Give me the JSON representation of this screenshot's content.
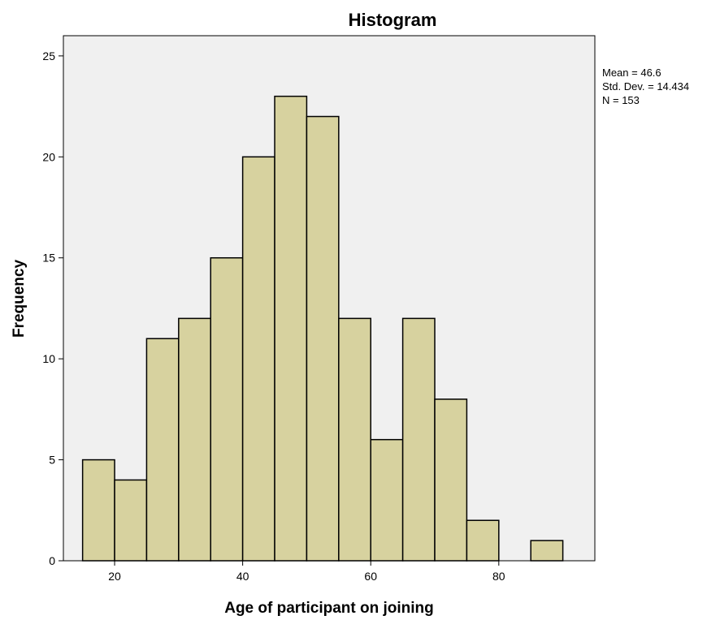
{
  "chart_data": {
    "type": "bar",
    "title": "Histogram",
    "xlabel": "Age of participant on joining",
    "ylabel": "Frequency",
    "xlim": [
      12,
      95
    ],
    "ylim": [
      0,
      26
    ],
    "x_ticks": [
      20,
      40,
      60,
      80
    ],
    "y_ticks": [
      0,
      5,
      10,
      15,
      20,
      25
    ],
    "bin_width": 5,
    "bins": [
      {
        "start": 15,
        "end": 20,
        "count": 5
      },
      {
        "start": 20,
        "end": 25,
        "count": 4
      },
      {
        "start": 25,
        "end": 30,
        "count": 11
      },
      {
        "start": 30,
        "end": 35,
        "count": 12
      },
      {
        "start": 35,
        "end": 40,
        "count": 15
      },
      {
        "start": 40,
        "end": 45,
        "count": 20
      },
      {
        "start": 45,
        "end": 50,
        "count": 23
      },
      {
        "start": 50,
        "end": 55,
        "count": 22
      },
      {
        "start": 55,
        "end": 60,
        "count": 12
      },
      {
        "start": 60,
        "end": 65,
        "count": 6
      },
      {
        "start": 65,
        "end": 70,
        "count": 12
      },
      {
        "start": 70,
        "end": 75,
        "count": 8
      },
      {
        "start": 75,
        "end": 80,
        "count": 2
      },
      {
        "start": 80,
        "end": 85,
        "count": 0
      },
      {
        "start": 85,
        "end": 90,
        "count": 1
      }
    ],
    "stats": {
      "mean": "Mean = 46.6",
      "std_dev": "Std. Dev. = 14.434",
      "n": "N = 153"
    },
    "grid": false,
    "legend": "none",
    "colors": {
      "bar_fill": "#d7d29f",
      "bar_stroke": "#000000",
      "plot_background": "#f0f0f0"
    }
  }
}
